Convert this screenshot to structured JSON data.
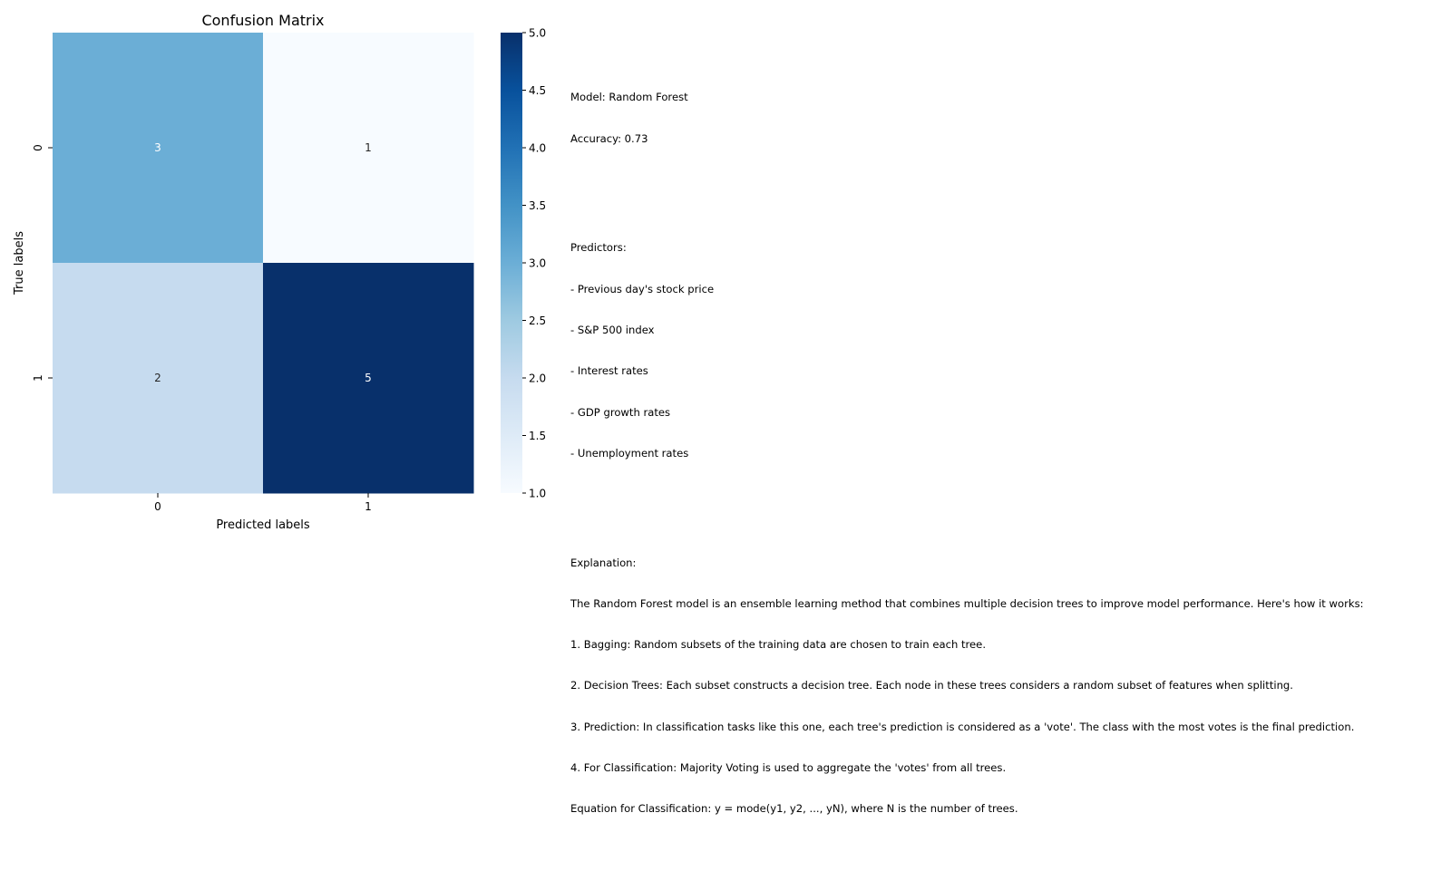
{
  "chart_data": {
    "type": "heatmap",
    "title": "Confusion Matrix",
    "xlabel": "Predicted labels",
    "ylabel": "True labels",
    "x_categories": [
      "0",
      "1"
    ],
    "y_categories": [
      "0",
      "1"
    ],
    "values": [
      [
        3,
        1
      ],
      [
        2,
        5
      ]
    ],
    "colormap": "Blues",
    "vmin": 1,
    "vmax": 5,
    "colorbar_ticks": [
      "1.0",
      "1.5",
      "2.0",
      "2.5",
      "3.0",
      "3.5",
      "4.0",
      "4.5",
      "5.0"
    ],
    "annotation_colors": {
      "light_cell_text": "#262626",
      "dark_cell_text": "#ffffff"
    }
  },
  "info": {
    "model_line": "Model: Random Forest",
    "accuracy_line": "Accuracy: 0.73",
    "predictors_header": "Predictors:",
    "predictors": [
      "- Previous day's stock price",
      "- S&P 500 index",
      "- Interest rates",
      "- GDP growth rates",
      "- Unemployment rates"
    ],
    "explanation_header": "Explanation:",
    "explanation_lines": [
      "The Random Forest model is an ensemble learning method that combines multiple decision trees to improve model performance. Here's how it works:",
      "1. Bagging: Random subsets of the training data are chosen to train each tree.",
      "2. Decision Trees: Each subset constructs a decision tree. Each node in these trees considers a random subset of features when splitting.",
      "3. Prediction: In classification tasks like this one, each tree's prediction is considered as a 'vote'. The class with the most votes is the final prediction.",
      "4. For Classification: Majority Voting is used to aggregate the 'votes' from all trees.",
      "Equation for Classification: y = mode(y1, y2, ..., yN), where N is the number of trees."
    ]
  }
}
